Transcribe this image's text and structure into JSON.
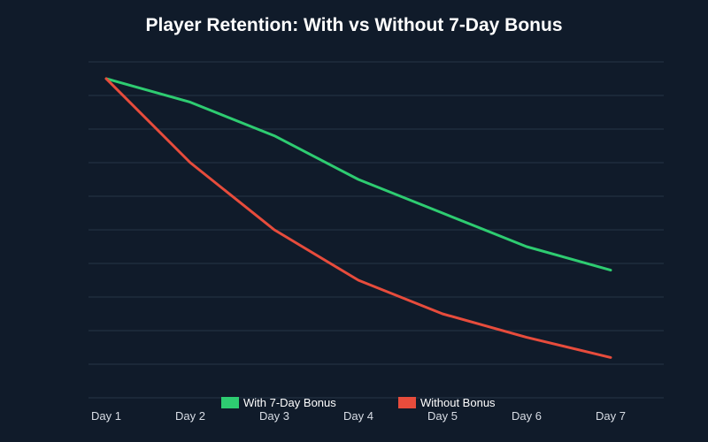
{
  "chart_data": {
    "type": "line",
    "title": "Player Retention: With vs Without 7-Day Bonus",
    "xlabel": "",
    "ylabel": "",
    "categories": [
      "Day 1",
      "Day 2",
      "Day 3",
      "Day 4",
      "Day 5",
      "Day 6",
      "Day 7"
    ],
    "ylim": [
      0,
      100
    ],
    "grid": true,
    "legend_position": "bottom",
    "series": [
      {
        "name": "With 7-Day Bonus",
        "color": "#2ecc71",
        "values": [
          95,
          88,
          78,
          65,
          55,
          45,
          38
        ]
      },
      {
        "name": "Without Bonus",
        "color": "#e74c3c",
        "values": [
          95,
          70,
          50,
          35,
          25,
          18,
          12
        ]
      }
    ]
  },
  "colors": {
    "background": "#101b2a",
    "grid": "#263445",
    "title": "#ffffff",
    "tick_text": "#d8dde5"
  }
}
